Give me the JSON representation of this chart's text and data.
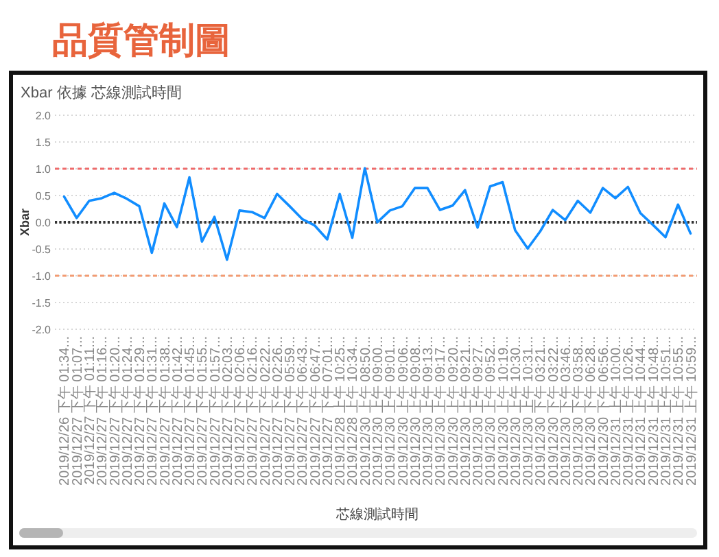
{
  "chart_data": {
    "type": "line",
    "title": "品質管制圖",
    "subtitle": "Xbar 依據 芯線測試時間",
    "xlabel": "芯線測試時間",
    "ylabel": "Xbar",
    "categories": [
      "2019/12/26 下午 01:34...",
      "2019/12/27 下午 01:07...",
      "2019/12/27 下午 01:11...",
      "2019/12/27 下午 01:16...",
      "2019/12/27 下午 01:20...",
      "2019/12/27 下午 01:24...",
      "2019/12/27 下午 01:29...",
      "2019/12/27 下午 01:31...",
      "2019/12/27 下午 01:38...",
      "2019/12/27 下午 01:42...",
      "2019/12/27 下午 01:45...",
      "2019/12/27 下午 01:55...",
      "2019/12/27 下午 01:57...",
      "2019/12/27 下午 02:03...",
      "2019/12/27 下午 02:06...",
      "2019/12/27 下午 02:16...",
      "2019/12/27 下午 02:22...",
      "2019/12/27 下午 02:26...",
      "2019/12/27 下午 05:59...",
      "2019/12/27 下午 06:43...",
      "2019/12/27 下午 06:47...",
      "2019/12/27 下午 07:01...",
      "2019/12/28 上午 10:25...",
      "2019/12/28 上午 10:34...",
      "2019/12/30 上午 08:50...",
      "2019/12/30 上午 09:00...",
      "2019/12/30 上午 09:01...",
      "2019/12/30 上午 09:06...",
      "2019/12/30 上午 09:08...",
      "2019/12/30 上午 09:13...",
      "2019/12/30 上午 09:17...",
      "2019/12/30 上午 09:20...",
      "2019/12/30 上午 09:21...",
      "2019/12/30 上午 09:27...",
      "2019/12/30 上午 09:52...",
      "2019/12/30 上午 10:19...",
      "2019/12/30 上午 10:30...",
      "2019/12/30 上午 10:31...",
      "2019/12/30 下午 03:21...",
      "2019/12/30 下午 03:22...",
      "2019/12/30 下午 03:46...",
      "2019/12/30 下午 03:58...",
      "2019/12/30 下午 06:28...",
      "2019/12/30 下午 06:56...",
      "2019/12/31 上午 10:00...",
      "2019/12/31 上午 10:26...",
      "2019/12/31 上午 10:44...",
      "2019/12/31 上午 10:48...",
      "2019/12/31 上午 10:51...",
      "2019/12/31 上午 10:55...",
      "2019/12/31 上午 10:59..."
    ],
    "series": [
      {
        "color": "#118dff",
        "values": [
          0.48,
          0.08,
          0.4,
          0.45,
          0.55,
          0.44,
          0.3,
          -0.57,
          0.35,
          -0.09,
          0.84,
          -0.36,
          0.1,
          -0.7,
          0.22,
          0.19,
          0.08,
          0.53,
          0.3,
          0.06,
          -0.06,
          -0.32,
          0.53,
          -0.29,
          1.01,
          0.0,
          0.22,
          0.3,
          0.64,
          0.64,
          0.23,
          0.31,
          0.6,
          -0.1,
          0.67,
          0.75,
          -0.15,
          -0.49,
          -0.17,
          0.23,
          0.04,
          0.4,
          0.18,
          0.64,
          0.45,
          0.66,
          0.17,
          -0.05,
          -0.28,
          0.33,
          -0.21
        ]
      }
    ],
    "ylim": [
      -2,
      2
    ],
    "yticks": [
      {
        "value": -2,
        "label": "-2.0"
      },
      {
        "value": -1.5,
        "label": "-1.5"
      },
      {
        "value": -1,
        "label": "-1.0"
      },
      {
        "value": -0.5,
        "label": "-0.5"
      },
      {
        "value": 0,
        "label": "0.0"
      },
      {
        "value": 0.5,
        "label": "0.5"
      },
      {
        "value": 1,
        "label": "1.0"
      },
      {
        "value": 1.5,
        "label": "1.5"
      },
      {
        "value": 2,
        "label": "2.0"
      }
    ],
    "grid": "y",
    "ref_lines": [
      {
        "axis": "y",
        "value": 1,
        "color": "#ee6b6b",
        "line_style": "dashed"
      },
      {
        "axis": "y",
        "value": -1,
        "color": "#f29b72",
        "line_style": "dashed"
      },
      {
        "axis": "y",
        "value": 0,
        "color": "#333333",
        "line_style": "dotted"
      }
    ]
  }
}
